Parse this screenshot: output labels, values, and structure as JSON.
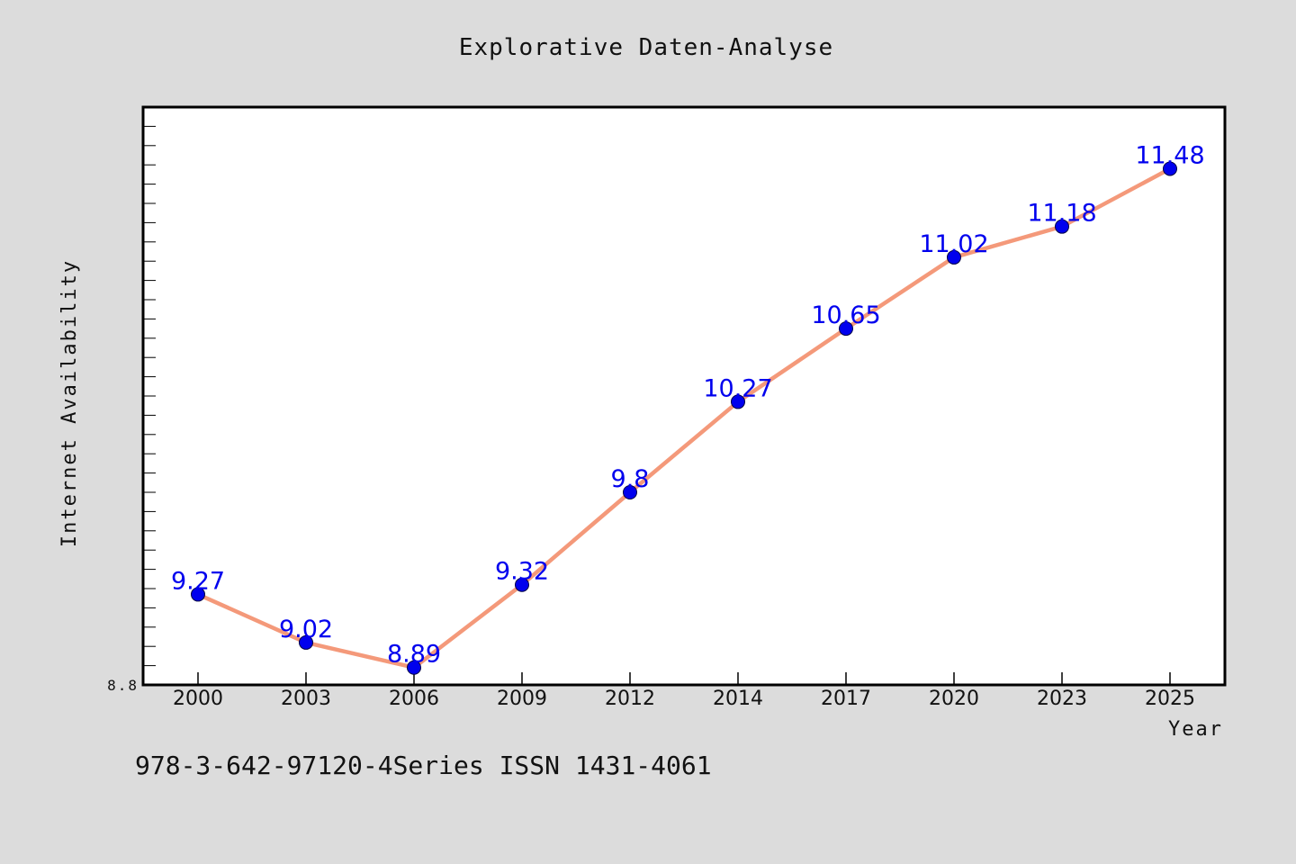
{
  "footer_note": "978-3-642-97120-4Series ISSN 1431-4061",
  "colors": {
    "background": "#dcdcdc",
    "plot_background": "#ffffff",
    "line": "#f4997a",
    "marker": "#0000ee",
    "label": "#0000ee"
  },
  "chart_data": {
    "type": "line",
    "title": "Explorative Daten-Analyse",
    "xlabel": "Year",
    "ylabel": "Internet Availability",
    "categories": [
      "2000",
      "2003",
      "2006",
      "2009",
      "2012",
      "2014",
      "2017",
      "2020",
      "2023",
      "2025"
    ],
    "series": [
      {
        "values": [
          9.27,
          9.02,
          8.89,
          9.32,
          9.8,
          10.27,
          10.65,
          11.02,
          11.18,
          11.48
        ]
      }
    ],
    "data_labels": [
      "9.27",
      "9.02",
      "8.89",
      "9.32",
      "9.8",
      "10.27",
      "10.65",
      "11.02",
      "11.18",
      "11.48"
    ],
    "ylim": [
      8.8,
      11.8
    ],
    "ytick_labels": [
      "8.8"
    ],
    "grid": false,
    "legend": "none"
  }
}
